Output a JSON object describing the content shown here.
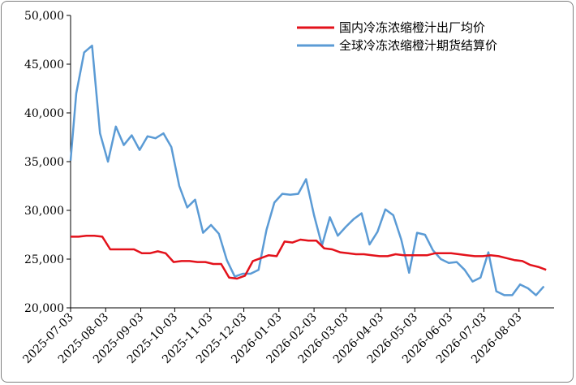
{
  "chart_data": {
    "type": "line",
    "title": "",
    "xlabel": "",
    "ylabel": "",
    "ylim": [
      20000,
      50000
    ],
    "yticks": [
      20000,
      25000,
      30000,
      35000,
      40000,
      45000,
      50000
    ],
    "ytick_labels": [
      "20,000",
      "25,000",
      "30,000",
      "35,000",
      "40,000",
      "45,000",
      "50,000"
    ],
    "x_start": "2025-07-03",
    "x_end": "2026-09-03",
    "xticks": [
      "2025-07-03",
      "2025-08-03",
      "2025-09-03",
      "2025-10-03",
      "2025-11-03",
      "2025-12-03",
      "2026-01-03",
      "2026-02-03",
      "2026-03-03",
      "2026-04-03",
      "2026-05-03",
      "2026-06-03",
      "2026-07-03",
      "2026-08-03"
    ],
    "grid": false,
    "legend_position": "top-right",
    "series": [
      {
        "name": "国内冷冻浓缩橙汁出厂均价",
        "color": "#e3121b",
        "x": [
          "2025-07-03",
          "2025-07-10",
          "2025-07-17",
          "2025-07-24",
          "2025-07-31",
          "2025-08-07",
          "2025-08-14",
          "2025-08-21",
          "2025-08-28",
          "2025-09-04",
          "2025-09-11",
          "2025-09-18",
          "2025-09-25",
          "2025-10-02",
          "2025-10-09",
          "2025-10-16",
          "2025-10-23",
          "2025-10-30",
          "2025-11-06",
          "2025-11-13",
          "2025-11-20",
          "2025-11-27",
          "2025-12-04",
          "2025-12-11",
          "2025-12-18",
          "2025-12-25",
          "2026-01-01",
          "2026-01-08",
          "2026-01-15",
          "2026-01-22",
          "2026-01-29",
          "2026-02-05",
          "2026-02-12",
          "2026-02-19",
          "2026-02-26",
          "2026-03-05",
          "2026-03-12",
          "2026-03-19",
          "2026-03-26",
          "2026-04-02",
          "2026-04-09",
          "2026-04-16",
          "2026-04-23",
          "2026-04-30",
          "2026-05-07",
          "2026-05-14",
          "2026-05-21",
          "2026-05-28",
          "2026-06-04",
          "2026-06-11",
          "2026-06-18",
          "2026-06-25",
          "2026-07-02",
          "2026-07-09",
          "2026-07-16",
          "2026-07-23",
          "2026-07-30",
          "2026-08-06",
          "2026-08-13",
          "2026-08-20",
          "2026-08-27"
        ],
        "y": [
          27300,
          27300,
          27400,
          27400,
          27300,
          26000,
          26000,
          26000,
          26000,
          25600,
          25600,
          25800,
          25600,
          24700,
          24800,
          24800,
          24700,
          24700,
          24500,
          24500,
          23100,
          23000,
          23300,
          24800,
          25100,
          25400,
          25300,
          26800,
          26700,
          27000,
          26900,
          26900,
          26100,
          26000,
          25700,
          25600,
          25500,
          25500,
          25400,
          25300,
          25300,
          25500,
          25400,
          25400,
          25400,
          25400,
          25600,
          25600,
          25600,
          25500,
          25400,
          25300,
          25300,
          25400,
          25300,
          25100,
          24900,
          24800,
          24400,
          24200,
          23900
        ]
      },
      {
        "name": "全球冷冻浓缩橙汁期货结算价",
        "color": "#5b9bd5",
        "x": [
          "2025-07-03",
          "2025-07-08",
          "2025-07-15",
          "2025-07-22",
          "2025-07-29",
          "2025-08-05",
          "2025-08-12",
          "2025-08-19",
          "2025-08-26",
          "2025-09-02",
          "2025-09-09",
          "2025-09-16",
          "2025-09-23",
          "2025-09-30",
          "2025-10-07",
          "2025-10-14",
          "2025-10-21",
          "2025-10-28",
          "2025-11-04",
          "2025-11-11",
          "2025-11-18",
          "2025-11-25",
          "2025-12-02",
          "2025-12-09",
          "2025-12-16",
          "2025-12-23",
          "2025-12-30",
          "2026-01-06",
          "2026-01-13",
          "2026-01-20",
          "2026-01-27",
          "2026-02-03",
          "2026-02-10",
          "2026-02-17",
          "2026-02-24",
          "2026-03-03",
          "2026-03-10",
          "2026-03-17",
          "2026-03-24",
          "2026-03-31",
          "2026-04-07",
          "2026-04-14",
          "2026-04-21",
          "2026-04-28",
          "2026-05-05",
          "2026-05-12",
          "2026-05-19",
          "2026-05-26",
          "2026-06-02",
          "2026-06-09",
          "2026-06-16",
          "2026-06-23",
          "2026-06-30",
          "2026-07-07",
          "2026-07-14",
          "2026-07-21",
          "2026-07-28",
          "2026-08-04",
          "2026-08-11",
          "2026-08-18",
          "2026-08-25"
        ],
        "y": [
          35100,
          42000,
          46200,
          46900,
          37900,
          35000,
          38600,
          36700,
          37700,
          36200,
          37600,
          37400,
          37900,
          36500,
          32500,
          30300,
          31100,
          27700,
          28500,
          27600,
          24900,
          23200,
          23500,
          23500,
          23900,
          28000,
          30800,
          31700,
          31600,
          31700,
          33200,
          29500,
          26400,
          29300,
          27400,
          28300,
          29100,
          29700,
          26500,
          27800,
          30100,
          29500,
          27000,
          23600,
          27700,
          27500,
          25900,
          25000,
          24600,
          24700,
          23900,
          22700,
          23100,
          25700,
          21700,
          21300,
          21300,
          22400,
          22000,
          21300,
          22200
        ]
      }
    ]
  }
}
